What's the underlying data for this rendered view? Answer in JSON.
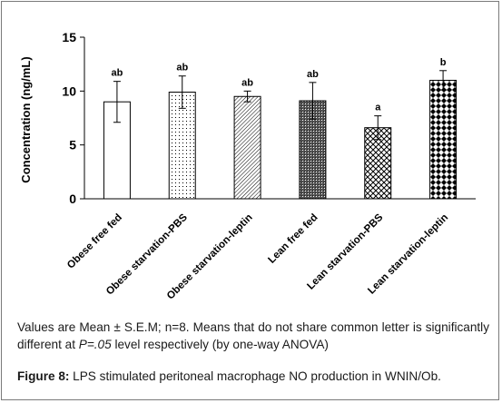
{
  "chart_data": {
    "type": "bar",
    "categories": [
      "Obese free fed",
      "Obese starvation-PBS",
      "Obese starvation-leptin",
      "Lean free fed",
      "Lean starvation-PBS",
      "Lean starvation-leptin"
    ],
    "values": [
      9.0,
      9.9,
      9.5,
      9.1,
      6.6,
      11.0
    ],
    "errors": [
      1.9,
      1.5,
      0.5,
      1.7,
      1.1,
      0.9
    ],
    "significance_letters": [
      "ab",
      "ab",
      "ab",
      "ab",
      "a",
      "b"
    ],
    "patterns": [
      "white",
      "dots-sparse",
      "diagonal-lines",
      "dense-hatch",
      "crosshatch",
      "diamond-checker"
    ],
    "ylabel": "Concentration (ng/mL)",
    "xlabel": "",
    "title": "",
    "ylim": [
      0,
      15
    ],
    "yticks": [
      0,
      5,
      10,
      15
    ],
    "grid": false
  },
  "footnote": {
    "pre": "Values are Mean ± S.E.M; n=8. Means that do not share common letter is significantly different at ",
    "p": "P=.05",
    "post": " level respectively (by one-way ANOVA)"
  },
  "caption": {
    "label": "Figure 8:",
    "text": " LPS stimulated peritoneal macrophage NO production in WNIN/Ob."
  },
  "colors": {
    "bar_stroke": "#000000",
    "frame": "#7a7a7a"
  }
}
